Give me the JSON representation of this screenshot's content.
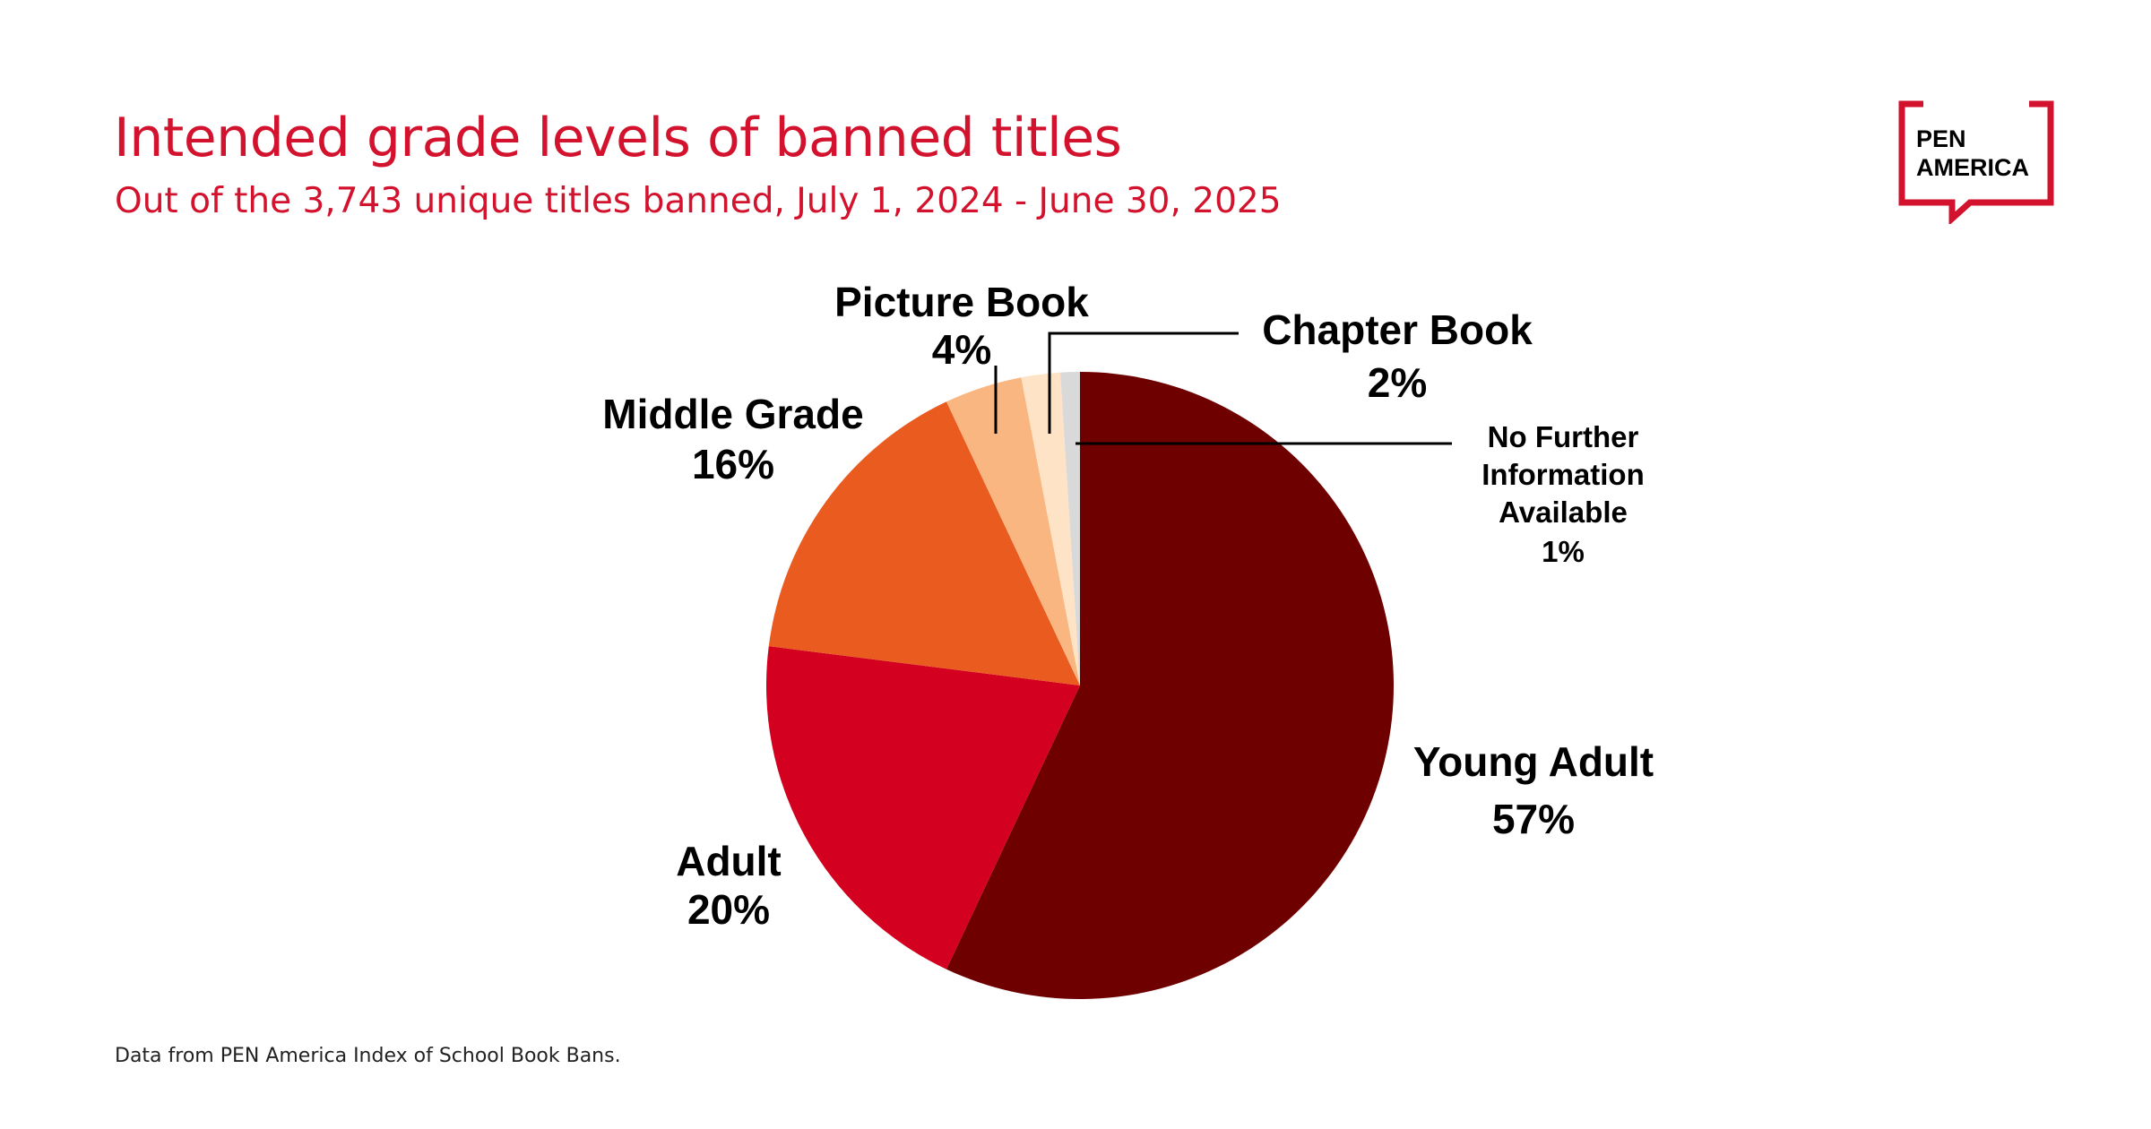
{
  "header": {
    "title": "Intended grade levels of banned titles",
    "subtitle": "Out of the 3,743 unique titles banned, July 1, 2024 - June 30, 2025"
  },
  "footer": {
    "source": "Data from PEN America Index of School Book Bans."
  },
  "logo": {
    "line1": "PEN",
    "line2": "AMERICA",
    "color": "#d3122d"
  },
  "chart_data": {
    "type": "pie",
    "title": "Intended grade levels of banned titles",
    "subtitle": "Out of the 3,743 unique titles banned, July 1, 2024 - June 30, 2025",
    "unit": "%",
    "slices": [
      {
        "label": "Young Adult",
        "value": 57,
        "display": "57%",
        "color": "#6e0000"
      },
      {
        "label": "Adult",
        "value": 20,
        "display": "20%",
        "color": "#d3001f"
      },
      {
        "label": "Middle Grade",
        "value": 16,
        "display": "16%",
        "color": "#ea5b20"
      },
      {
        "label": "Picture Book",
        "value": 4,
        "display": "4%",
        "color": "#f9b680"
      },
      {
        "label": "Chapter Book",
        "value": 2,
        "display": "2%",
        "color": "#fee3c6"
      },
      {
        "label": "No Further Information Available",
        "label_lines": [
          "No Further",
          "Information",
          "Available"
        ],
        "value": 1,
        "display": "1%",
        "color": "#d9d9d9"
      }
    ]
  }
}
